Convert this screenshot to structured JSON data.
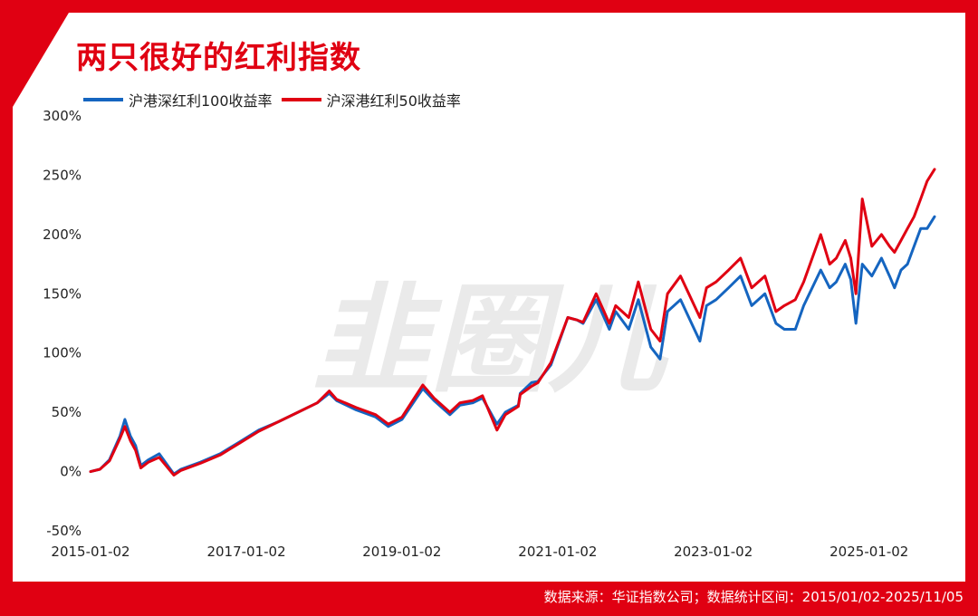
{
  "header": {
    "title": "两只很好的红利指数"
  },
  "footer": {
    "source": "数据来源：华证指数公司；数据统计区间：2015/01/02-2025/11/05"
  },
  "colors": {
    "accent": "#e00012",
    "series_blue": "#1565c0",
    "series_red": "#e00012"
  },
  "chart_data": {
    "type": "line",
    "title": "两只很好的红利指数",
    "xlabel": "",
    "ylabel": "",
    "y_unit": "%",
    "ylim": [
      -50,
      300
    ],
    "y_ticks": [
      -50,
      0,
      50,
      100,
      150,
      200,
      250,
      300
    ],
    "y_tick_labels": [
      "-50%",
      "0%",
      "50%",
      "100%",
      "150%",
      "200%",
      "250%",
      "300%"
    ],
    "x_range": [
      "2015-01-02",
      "2025-11-05"
    ],
    "x_tick_labels": [
      "2015-01-02",
      "2017-01-02",
      "2019-01-02",
      "2021-01-02",
      "2023-01-02",
      "2025-01-02"
    ],
    "legend_position": "top-left",
    "grid": false,
    "x": [
      "2015-01-02",
      "2015-02-15",
      "2015-04-01",
      "2015-05-20",
      "2015-06-12",
      "2015-07-08",
      "2015-08-01",
      "2015-08-26",
      "2015-10-01",
      "2015-11-20",
      "2016-01-28",
      "2016-03-01",
      "2016-06-01",
      "2016-09-01",
      "2016-12-01",
      "2017-03-01",
      "2017-06-01",
      "2017-09-01",
      "2017-12-01",
      "2018-01-26",
      "2018-03-01",
      "2018-06-01",
      "2018-09-01",
      "2018-10-30",
      "2019-01-02",
      "2019-04-10",
      "2019-06-01",
      "2019-08-15",
      "2019-10-01",
      "2019-12-01",
      "2020-01-15",
      "2020-03-23",
      "2020-05-01",
      "2020-07-01",
      "2020-07-10",
      "2020-09-01",
      "2020-10-01",
      "2020-12-01",
      "2021-02-18",
      "2021-04-01",
      "2021-05-01",
      "2021-07-01",
      "2021-09-01",
      "2021-10-01",
      "2021-12-01",
      "2022-01-15",
      "2022-03-15",
      "2022-04-27",
      "2022-06-01",
      "2022-08-01",
      "2022-10-31",
      "2022-12-01",
      "2023-01-15",
      "2023-03-15",
      "2023-05-10",
      "2023-07-01",
      "2023-09-01",
      "2023-10-23",
      "2023-12-01",
      "2024-01-22",
      "2024-03-01",
      "2024-05-20",
      "2024-07-01",
      "2024-08-01",
      "2024-09-12",
      "2024-10-08",
      "2024-11-01",
      "2024-12-01",
      "2025-01-15",
      "2025-03-01",
      "2025-04-08",
      "2025-05-01",
      "2025-06-01",
      "2025-07-01",
      "2025-08-01",
      "2025-09-01",
      "2025-10-01",
      "2025-11-05"
    ],
    "series": [
      {
        "name": "沪港深红利100收益率",
        "color": "#1565c0",
        "values": [
          0,
          2,
          10,
          30,
          44,
          30,
          22,
          5,
          10,
          15,
          -2,
          2,
          8,
          15,
          25,
          35,
          42,
          50,
          58,
          66,
          60,
          52,
          46,
          38,
          44,
          70,
          60,
          48,
          56,
          58,
          62,
          40,
          50,
          56,
          66,
          75,
          76,
          90,
          130,
          128,
          125,
          145,
          120,
          135,
          120,
          145,
          105,
          95,
          135,
          145,
          110,
          140,
          145,
          155,
          165,
          140,
          150,
          125,
          120,
          120,
          140,
          170,
          155,
          160,
          175,
          162,
          125,
          175,
          165,
          180,
          165,
          155,
          170,
          175,
          190,
          205,
          205,
          215
        ]
      },
      {
        "name": "沪深港红利50收益率",
        "color": "#e00012",
        "values": [
          0,
          2,
          9,
          28,
          38,
          26,
          18,
          3,
          8,
          12,
          -3,
          1,
          7,
          14,
          24,
          34,
          42,
          50,
          58,
          68,
          61,
          54,
          48,
          40,
          46,
          73,
          62,
          50,
          58,
          60,
          64,
          35,
          48,
          55,
          65,
          72,
          75,
          92,
          130,
          128,
          126,
          150,
          125,
          140,
          130,
          160,
          120,
          110,
          150,
          165,
          130,
          155,
          160,
          170,
          180,
          155,
          165,
          135,
          140,
          145,
          160,
          200,
          175,
          180,
          195,
          180,
          150,
          230,
          190,
          200,
          190,
          185,
          195,
          205,
          215,
          230,
          245,
          255
        ]
      }
    ]
  },
  "watermark": {
    "text": "韭圈儿"
  }
}
